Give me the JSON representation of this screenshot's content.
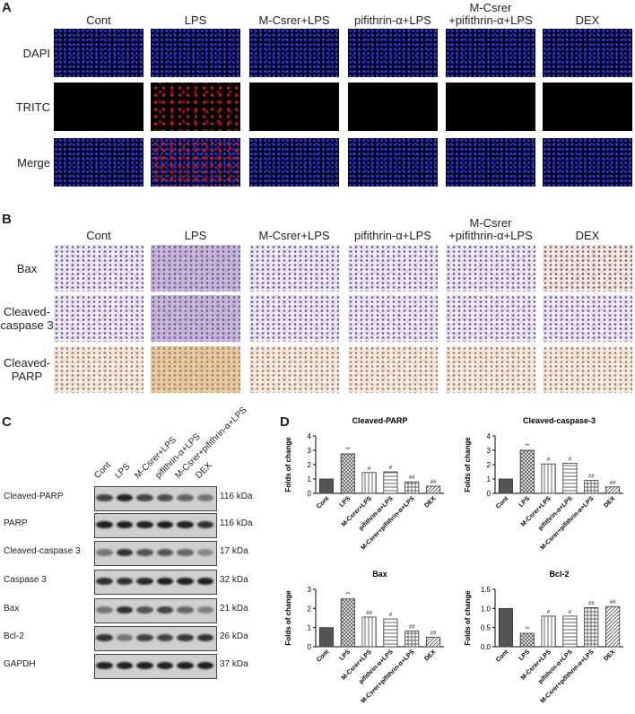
{
  "panel_a": {
    "label": "A",
    "columns": [
      "Cont",
      "LPS",
      "M-Csrer+LPS",
      "pifithrin-α+LPS",
      "M-Csrer\n+pifithrin-α+LPS",
      "DEX"
    ],
    "rows": [
      "DAPI",
      "TRITC",
      "Merge"
    ]
  },
  "panel_b": {
    "label": "B",
    "columns": [
      "Cont",
      "LPS",
      "M-Csrer+LPS",
      "pifithrin-α+LPS",
      "M-Csrer\n+pifithrin-α+LPS",
      "DEX"
    ],
    "rows": [
      "Bax",
      "Cleaved-\ncaspase 3",
      "Cleaved-\nPARP"
    ]
  },
  "panel_c": {
    "label": "C",
    "lanes": [
      "Cont",
      "LPS",
      "M-Csrer+LPS",
      "pifithrin-α+LPS",
      "M-Csrer+pifithrin-α+LPS",
      "DEX"
    ],
    "rows": [
      {
        "name": "Cleaved-PARP",
        "size": "116 kDa"
      },
      {
        "name": "PARP",
        "size": "116 kDa"
      },
      {
        "name": "Cleaved-caspase 3",
        "size": "17 kDa"
      },
      {
        "name": "Caspase 3",
        "size": "32 kDa"
      },
      {
        "name": "Bax",
        "size": "21 kDa"
      },
      {
        "name": "Bcl-2",
        "size": "26 kDa"
      },
      {
        "name": "GAPDH",
        "size": "37 kDa"
      }
    ]
  },
  "panel_d": {
    "label": "D"
  },
  "chart_data": [
    {
      "type": "bar",
      "title": "Cleaved-PARP",
      "y_label": "Folds of change",
      "categories": [
        "Cont",
        "LPS",
        "M-Csrer+LPS",
        "pifithrin-α+LPS",
        "M-Csrer+pifithrin-α+LPS",
        "DEX"
      ],
      "values": [
        1,
        2.75,
        1.45,
        1.5,
        0.8,
        0.5
      ],
      "annotations": [
        null,
        "**",
        "#",
        "#",
        "##",
        "##"
      ],
      "patterns": [
        "solid",
        "crosshatch",
        "vertical",
        "horizontal",
        "grid",
        "diagonal"
      ],
      "color": "#555555",
      "ylim": [
        0,
        4
      ],
      "yticks": [
        0,
        1,
        2,
        3,
        4
      ]
    },
    {
      "type": "bar",
      "title": "Cleaved-caspase-3",
      "y_label": "Folds of change",
      "categories": [
        "Cont",
        "LPS",
        "M-Csrer+LPS",
        "pifithrin-α+LPS",
        "M-Csrer+pifithrin-α+LPS",
        "DEX"
      ],
      "values": [
        1,
        3.0,
        2.05,
        2.1,
        0.9,
        0.45
      ],
      "annotations": [
        null,
        "**",
        "#",
        "#",
        "##",
        "##"
      ],
      "patterns": [
        "solid",
        "crosshatch",
        "vertical",
        "horizontal",
        "grid",
        "diagonal"
      ],
      "color": "#555555",
      "ylim": [
        0,
        4
      ],
      "yticks": [
        0,
        1,
        2,
        3,
        4
      ]
    },
    {
      "type": "bar",
      "title": "Bax",
      "y_label": "Folds of change",
      "categories": [
        "Cont",
        "LPS",
        "M-Csrer+LPS",
        "pifithrin-α+LPS",
        "M-Csrer+pifithrin-α+LPS",
        "DEX"
      ],
      "values": [
        1,
        2.5,
        1.55,
        1.45,
        0.82,
        0.5
      ],
      "annotations": [
        null,
        "**",
        "##",
        "#",
        "##",
        "##"
      ],
      "patterns": [
        "solid",
        "crosshatch",
        "vertical",
        "horizontal",
        "grid",
        "diagonal"
      ],
      "color": "#555555",
      "ylim": [
        0,
        3
      ],
      "yticks": [
        0,
        1,
        2,
        3
      ]
    },
    {
      "type": "bar",
      "title": "Bcl-2",
      "y_label": "Folds of change",
      "categories": [
        "Cont",
        "LPS",
        "M-Csrer+LPS",
        "pifithrin-α+LPS",
        "M-Csrer+pifithrin-α+LPS",
        "DEX"
      ],
      "values": [
        1.0,
        0.35,
        0.8,
        0.8,
        1.02,
        1.05
      ],
      "annotations": [
        null,
        "**",
        "#",
        "#",
        "##",
        "##"
      ],
      "patterns": [
        "solid",
        "crosshatch",
        "vertical",
        "horizontal",
        "grid",
        "diagonal"
      ],
      "color": "#555555",
      "ylim": [
        0,
        1.5
      ],
      "yticks": [
        {
          "value": 0,
          "label": "0.0"
        },
        0.5,
        {
          "value": 1,
          "label": "1.0"
        },
        1.5
      ]
    }
  ]
}
